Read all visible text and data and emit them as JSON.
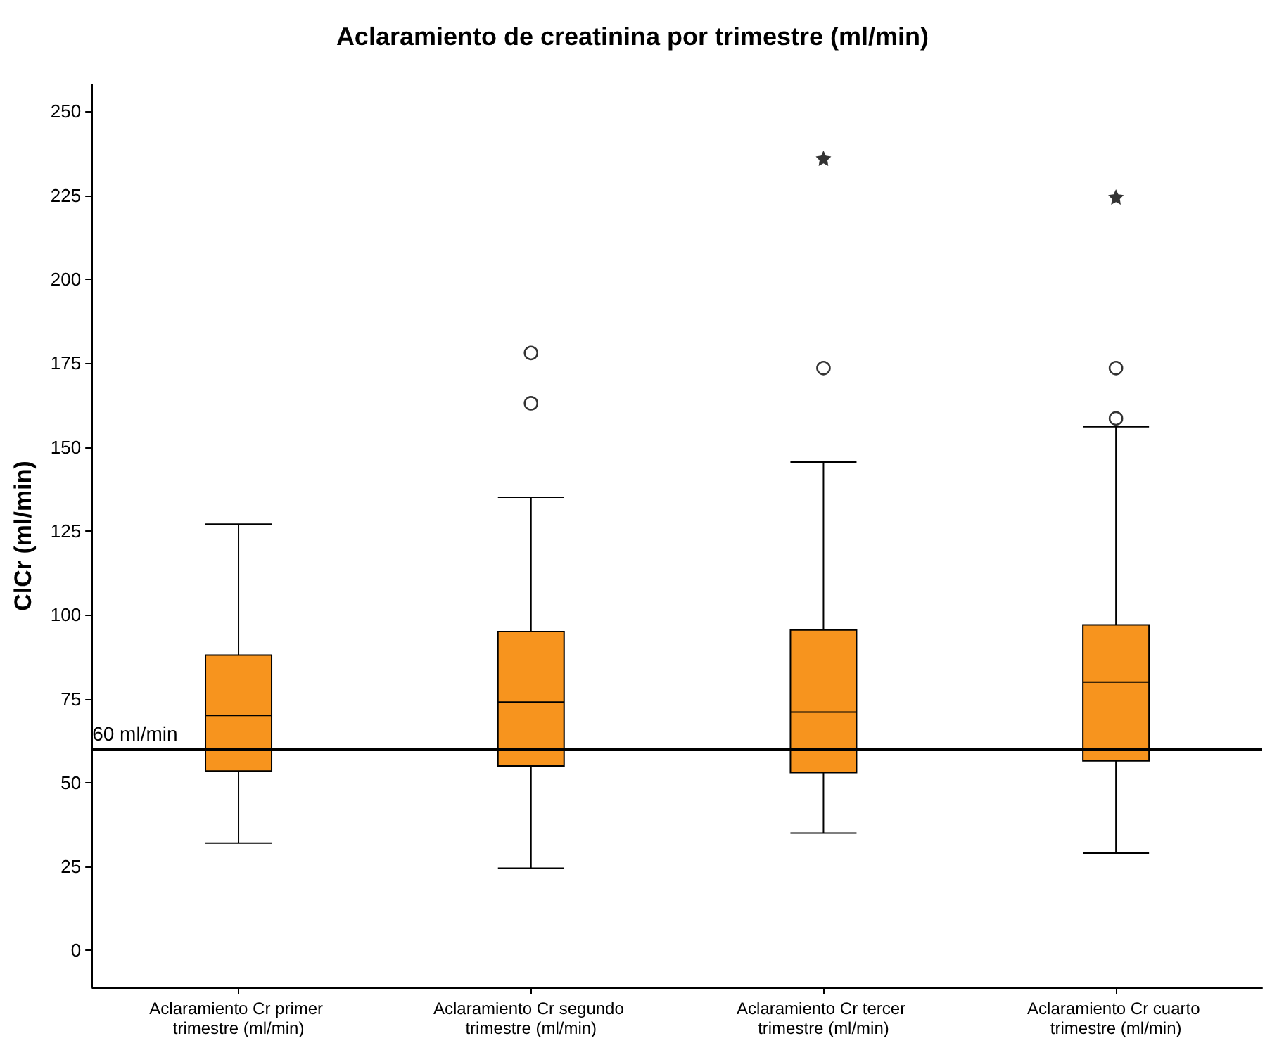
{
  "chart_data": {
    "type": "box",
    "title": "Aclaramiento de creatinina por trimestre (ml/min)",
    "ylabel": "ClCr (ml/min)",
    "categories": [
      "Aclaramiento Cr primer trimestre (ml/min)",
      "Aclaramiento Cr segundo trimestre (ml/min)",
      "Aclaramiento Cr tercer trimestre (ml/min)",
      "Aclaramiento Cr cuarto trimestre (ml/min)"
    ],
    "color": "#f7941e",
    "boxes": [
      {
        "low": 32,
        "q1": 53.5,
        "median": 70,
        "q3": 88,
        "high": 127
      },
      {
        "low": 24.5,
        "q1": 55,
        "median": 74,
        "q3": 95,
        "high": 135,
        "outliers": [
          163,
          178
        ]
      },
      {
        "low": 35,
        "q1": 53,
        "median": 71,
        "q3": 95.5,
        "high": 145.5,
        "outliers": [
          173.5,
          236
        ]
      },
      {
        "low": 29,
        "q1": 56.5,
        "median": 80,
        "q3": 97,
        "high": 156,
        "outliers": [
          158.5,
          173.5,
          224.5
        ]
      }
    ],
    "ylim": [
      -11,
      258
    ],
    "yticks": [
      0,
      25,
      50,
      75,
      100,
      125,
      150,
      175,
      200,
      225,
      250
    ],
    "ref_lines": [
      {
        "axis": "y",
        "value": 60,
        "label": "60 ml/min",
        "color": "#000000"
      }
    ]
  }
}
